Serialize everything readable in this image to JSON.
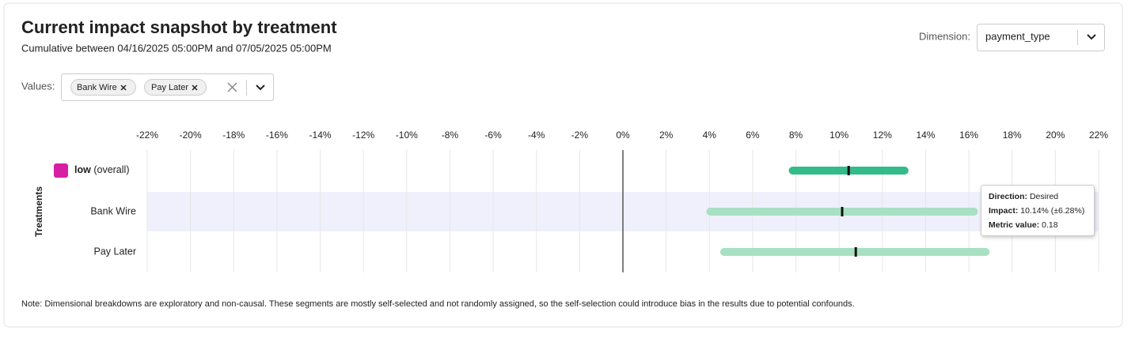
{
  "chart_data": {
    "type": "interval",
    "title": "Current impact snapshot by treatment",
    "subtitle": "Cumulative between 04/16/2025 05:00PM and 07/05/2025 05:00PM",
    "y_label": "Treatments",
    "categories": [
      "low",
      "Bank Wire",
      "Pay Later"
    ],
    "overall_label": "(overall)",
    "swatch_color": "#d61fa5",
    "series": [
      {
        "values": [
          10.44,
          10.14,
          10.77
        ],
        "lower": [
          7.67,
          3.86,
          4.5
        ],
        "upper": [
          13.21,
          16.42,
          16.96
        ],
        "colors": [
          "#33bb8a",
          "#a8e0c4",
          "#a8e0c4"
        ],
        "marker_color": "#111111"
      }
    ],
    "xlim": [
      -22,
      22
    ],
    "xticks": [
      {
        "value": -22,
        "label": "-22%"
      },
      {
        "value": -20,
        "label": "-20%"
      },
      {
        "value": -18,
        "label": "-18%"
      },
      {
        "value": -16,
        "label": "-16%"
      },
      {
        "value": -14,
        "label": "-14%"
      },
      {
        "value": -12,
        "label": "-12%"
      },
      {
        "value": -10,
        "label": "-10%"
      },
      {
        "value": -8,
        "label": "-8%"
      },
      {
        "value": -6,
        "label": "-6%"
      },
      {
        "value": -4,
        "label": "-4%"
      },
      {
        "value": -2,
        "label": "-2%"
      },
      {
        "value": 0,
        "label": "0%"
      },
      {
        "value": 2,
        "label": "2%"
      },
      {
        "value": 4,
        "label": "4%"
      },
      {
        "value": 6,
        "label": "6%"
      },
      {
        "value": 8,
        "label": "8%"
      },
      {
        "value": 10,
        "label": "10%"
      },
      {
        "value": 12,
        "label": "12%"
      },
      {
        "value": 14,
        "label": "14%"
      },
      {
        "value": 16,
        "label": "16%"
      },
      {
        "value": 18,
        "label": "18%"
      },
      {
        "value": 20,
        "label": "20%"
      },
      {
        "value": 22,
        "label": "22%"
      }
    ],
    "grid": true
  },
  "controls": {
    "dimension_label": "Dimension:",
    "dimension_value": "payment_type",
    "values_label": "Values:",
    "chips": [
      "Bank Wire",
      "Pay Later"
    ]
  },
  "tooltip": {
    "direction_label": "Direction:",
    "direction": "Desired",
    "impact_label": "Impact:",
    "impact": "10.14% (±6.28%)",
    "metric_label": "Metric value:",
    "metric": "0.18"
  },
  "note": "Note: Dimensional breakdowns are exploratory and non-causal. These segments are mostly self-selected and not randomly assigned, so the self-selection could introduce bias in the results due to potential confounds."
}
